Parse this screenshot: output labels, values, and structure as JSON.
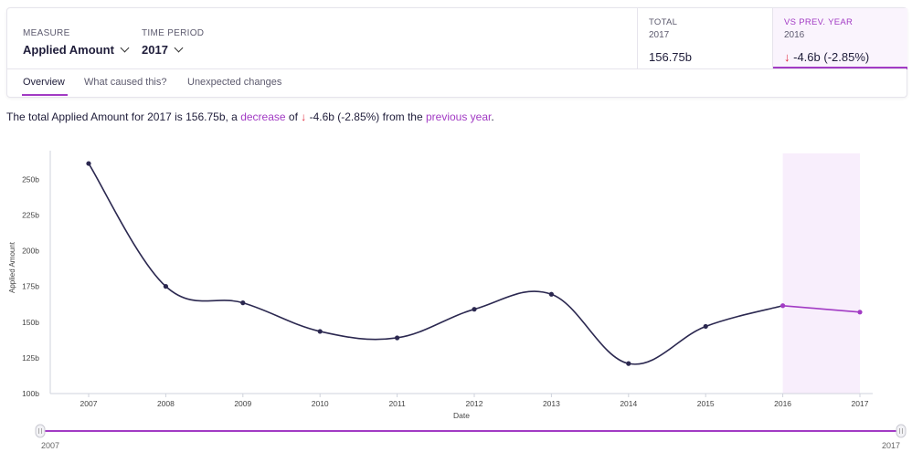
{
  "header": {
    "measure": {
      "label": "MEASURE",
      "value": "Applied Amount"
    },
    "time_period": {
      "label": "TIME PERIOD",
      "value": "2017"
    },
    "total": {
      "label": "TOTAL",
      "sub": "2017",
      "value": "156.75b"
    },
    "vs_prev": {
      "label": "VS PREV. YEAR",
      "sub": "2016",
      "arrow": "↓",
      "value": "-4.6b (-2.85%)"
    }
  },
  "tabs": [
    {
      "label": "Overview",
      "active": true
    },
    {
      "label": "What caused this?",
      "active": false
    },
    {
      "label": "Unexpected changes",
      "active": false
    }
  ],
  "summary": {
    "part1": "The total Applied Amount for 2017 is 156.75b, a ",
    "decrease_link": "decrease",
    "part2": " of ",
    "arrow": "↓",
    "change": " -4.6b (-2.85%)",
    "part3": " from the ",
    "prev_link": "previous year",
    "part4": "."
  },
  "colors": {
    "accent": "#a23bc4",
    "line": "#2b2850",
    "down": "#e0283c",
    "highlight": "#f8eefc"
  },
  "chart_data": {
    "type": "line",
    "xlabel": "Date",
    "ylabel": "Applied Amount",
    "categories": [
      "2007",
      "2008",
      "2009",
      "2010",
      "2011",
      "2012",
      "2013",
      "2014",
      "2015",
      "2016",
      "2017"
    ],
    "values": [
      261,
      175,
      163.5,
      143.5,
      139,
      159,
      169.5,
      121,
      147,
      161.5,
      157
    ],
    "yticks": [
      "100b",
      "125b",
      "150b",
      "175b",
      "200b",
      "225b",
      "250b"
    ],
    "ylim": [
      100,
      270
    ],
    "highlight_range": [
      "2016",
      "2017"
    ],
    "range_slider": {
      "start": "2007",
      "end": "2017"
    }
  }
}
